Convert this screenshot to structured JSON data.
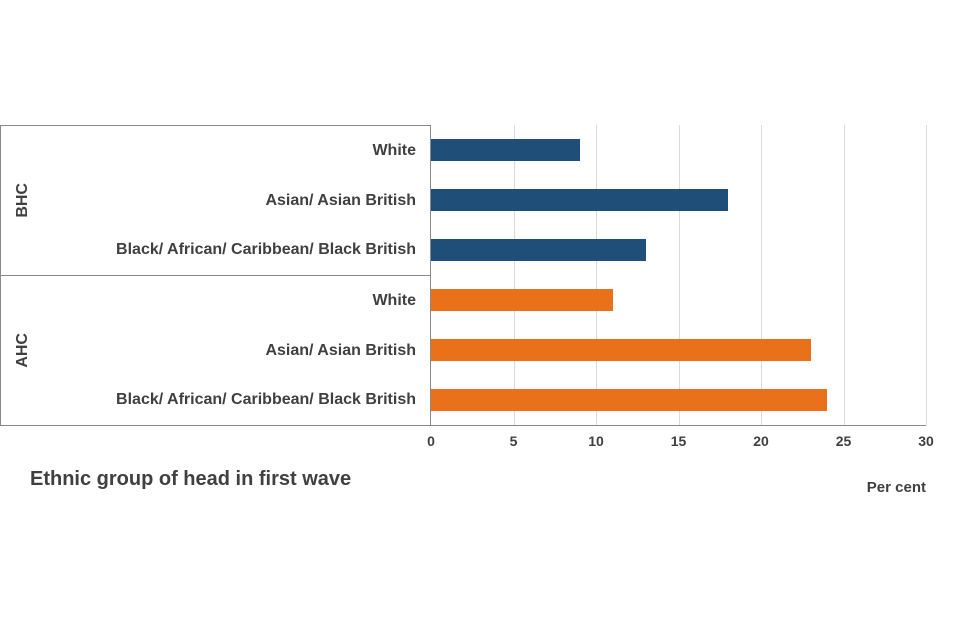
{
  "title": "Ethnic group of head in first wave",
  "axis_note": "Per cent",
  "colors": {
    "bhc": "#1f4e79",
    "ahc": "#e8711a",
    "grid": "#d9d9d9",
    "border": "#898989",
    "text": "#404040"
  },
  "chart_data": {
    "type": "bar",
    "orientation": "horizontal",
    "title": "Ethnic group of head in first wave",
    "xlabel": "Per cent",
    "xlim": [
      0,
      30
    ],
    "ticks": [
      0,
      5,
      10,
      15,
      20,
      25,
      30
    ],
    "grid": true,
    "groups": [
      {
        "name": "BHC",
        "color_key": "bhc",
        "rows": [
          {
            "label": "White",
            "value": 9
          },
          {
            "label": "Asian/ Asian British",
            "value": 18
          },
          {
            "label": "Black/ African/ Caribbean/ Black British",
            "value": 13
          }
        ]
      },
      {
        "name": "AHC",
        "color_key": "ahc",
        "rows": [
          {
            "label": "White",
            "value": 11
          },
          {
            "label": "Asian/ Asian British",
            "value": 23
          },
          {
            "label": "Black/ African/ Caribbean/ Black British",
            "value": 24
          }
        ]
      }
    ]
  }
}
